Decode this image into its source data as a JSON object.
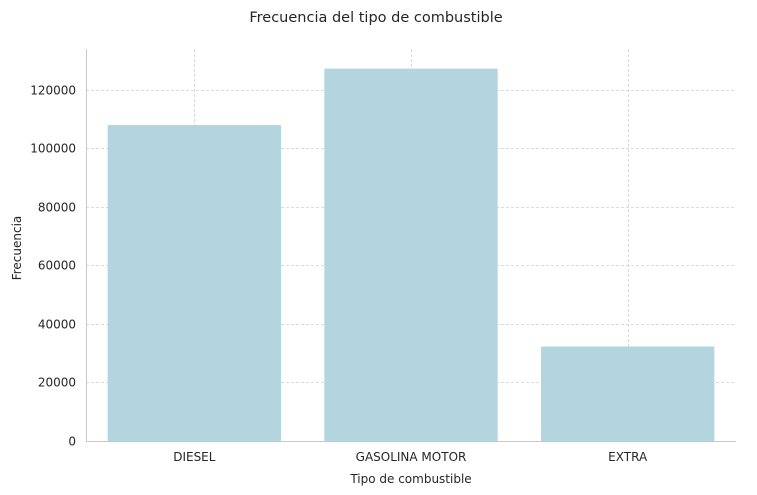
{
  "chart_data": {
    "type": "bar",
    "title": "Frecuencia del tipo de combustible",
    "xlabel": "Tipo de combustible",
    "ylabel": "Frecuencia",
    "categories": [
      "DIESEL",
      "GASOLINA MOTOR",
      "EXTRA"
    ],
    "values": [
      108000,
      127300,
      32300
    ],
    "ylim": [
      0,
      134000
    ],
    "yticks": [
      0,
      20000,
      40000,
      60000,
      80000,
      100000,
      120000
    ],
    "grid": true,
    "bar_color": "#b3d5df"
  }
}
